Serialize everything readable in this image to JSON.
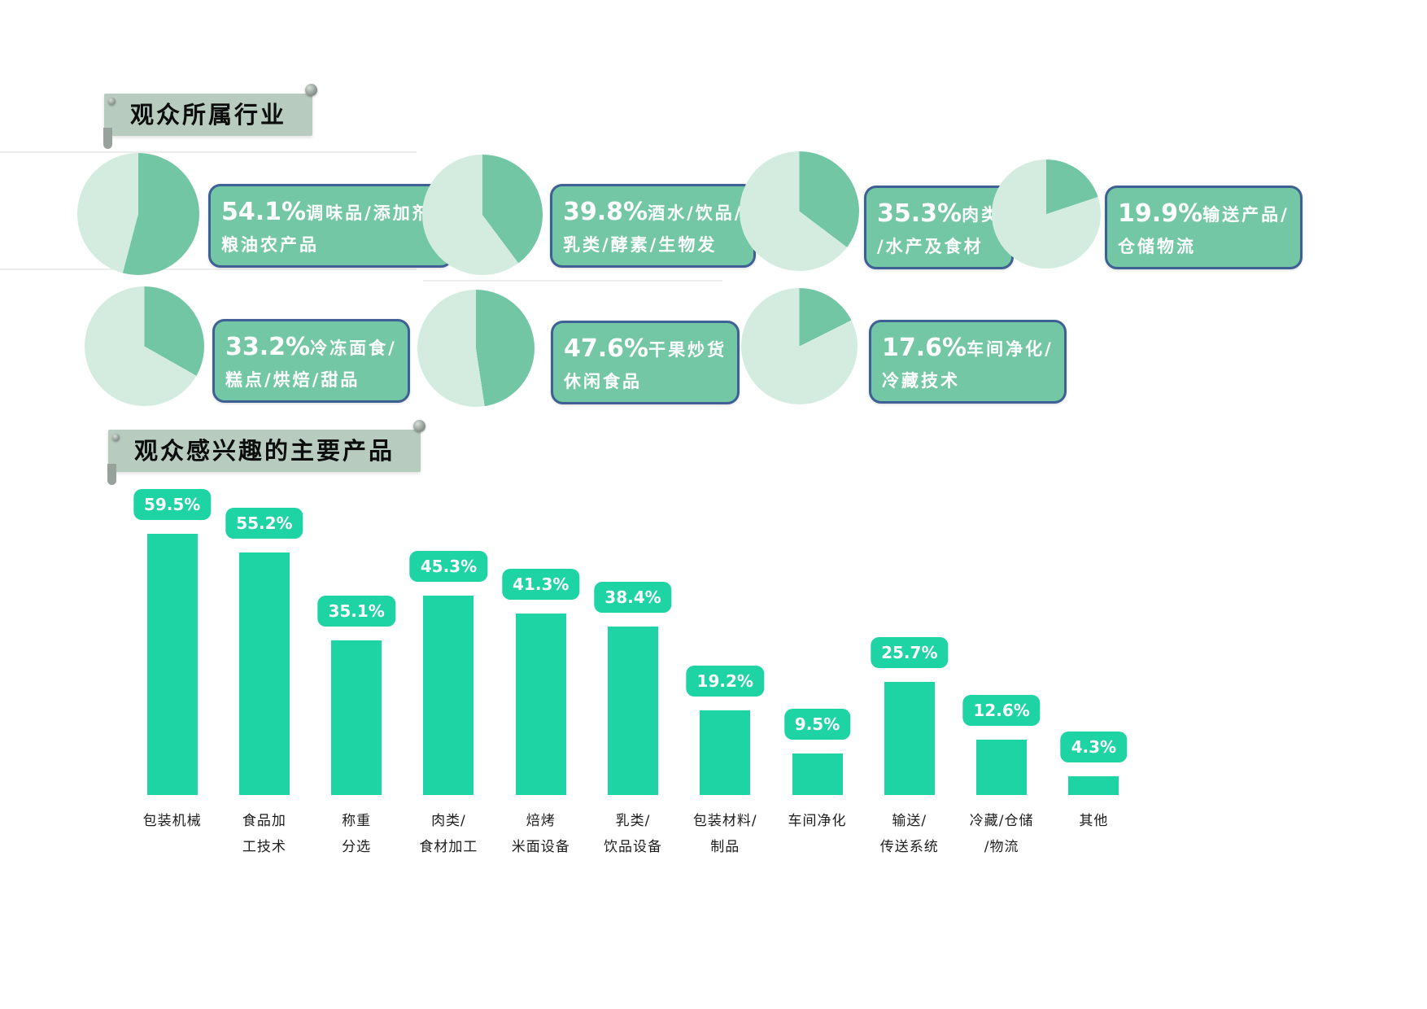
{
  "colors": {
    "bar_mint": "#1ed3a4",
    "pie_dark": "#72c6a4",
    "pie_light": "#d4ecdf",
    "tag_fill": "#74c7a4",
    "tag_border": "#3e6095",
    "banner_bg": "#b7cbbf"
  },
  "industries": {
    "title": "观众所属行业",
    "items": [
      {
        "value": "54.1%",
        "pct": 54.1,
        "line1": "调味品/添加剂/",
        "line2": "粮油农产品"
      },
      {
        "value": "39.8%",
        "pct": 39.8,
        "line1": "酒水/饮品/",
        "line2": "乳类/酵素/生物发"
      },
      {
        "value": "35.3%",
        "pct": 35.3,
        "line1": "肉类",
        "line2": "/水产及食材"
      },
      {
        "value": "19.9%",
        "pct": 19.9,
        "line1": "输送产品/",
        "line2": "仓储物流"
      },
      {
        "value": "33.2%",
        "pct": 33.2,
        "line1": "冷冻面食/",
        "line2": "糕点/烘焙/甜品"
      },
      {
        "value": "47.6%",
        "pct": 47.6,
        "line1": "干果炒货",
        "line2": "休闲食品"
      },
      {
        "value": "17.6%",
        "pct": 17.6,
        "line1": "车间净化/",
        "line2": "冷藏技术"
      }
    ]
  },
  "products": {
    "title": "观众感兴趣的主要产品",
    "bars": [
      {
        "value": "59.5%",
        "pct": 59.5,
        "label_lines": [
          "包装机械"
        ]
      },
      {
        "value": "55.2%",
        "pct": 55.2,
        "label_lines": [
          "食品加",
          "工技术"
        ]
      },
      {
        "value": "35.1%",
        "pct": 35.1,
        "label_lines": [
          "称重",
          "分选"
        ]
      },
      {
        "value": "45.3%",
        "pct": 45.3,
        "label_lines": [
          "肉类/",
          "食材加工"
        ]
      },
      {
        "value": "41.3%",
        "pct": 41.3,
        "label_lines": [
          "焙烤",
          "米面设备"
        ]
      },
      {
        "value": "38.4%",
        "pct": 38.4,
        "label_lines": [
          "乳类/",
          "饮品设备"
        ]
      },
      {
        "value": "19.2%",
        "pct": 19.2,
        "label_lines": [
          "包装材料/",
          "制品"
        ]
      },
      {
        "value": "9.5%",
        "pct": 9.5,
        "label_lines": [
          "车间净化"
        ]
      },
      {
        "value": "25.7%",
        "pct": 25.7,
        "label_lines": [
          "输送/",
          "传送系统"
        ]
      },
      {
        "value": "12.6%",
        "pct": 12.6,
        "label_lines": [
          "冷藏/仓储",
          "/物流"
        ]
      },
      {
        "value": "4.3%",
        "pct": 4.3,
        "label_lines": [
          "其他"
        ]
      }
    ]
  },
  "chart_data": [
    {
      "type": "pie",
      "title": "观众所属行业",
      "unit": "%",
      "pies": [
        {
          "label": "调味品/添加剂/粮油农产品",
          "value": 54.1
        },
        {
          "label": "酒水/饮品/乳类/酵素/生物发",
          "value": 39.8
        },
        {
          "label": "肉类/水产及食材",
          "value": 35.3
        },
        {
          "label": "输送产品/仓储物流",
          "value": 19.9
        },
        {
          "label": "冷冻面食/糕点/烘焙/甜品",
          "value": 33.2
        },
        {
          "label": "干果炒货休闲食品",
          "value": 47.6
        },
        {
          "label": "车间净化/冷藏技术",
          "value": 17.6
        }
      ],
      "note": "七个独立单值饼图，深色扇区自12点起顺时针表示占比"
    },
    {
      "type": "bar",
      "title": "观众感兴趣的主要产品",
      "unit": "%",
      "categories": [
        "包装机械",
        "食品加工技术",
        "称重分选",
        "肉类/食材加工",
        "焙烤米面设备",
        "乳类/饮品设备",
        "包装材料/制品",
        "车间净化",
        "输送/传送系统",
        "冷藏/仓储/物流",
        "其他"
      ],
      "values": [
        59.5,
        55.2,
        35.1,
        45.3,
        41.3,
        38.4,
        19.2,
        9.5,
        25.7,
        12.6,
        4.3
      ],
      "ylim": [
        0,
        65
      ],
      "grid": false,
      "legend": "none",
      "data_labels": true
    }
  ]
}
